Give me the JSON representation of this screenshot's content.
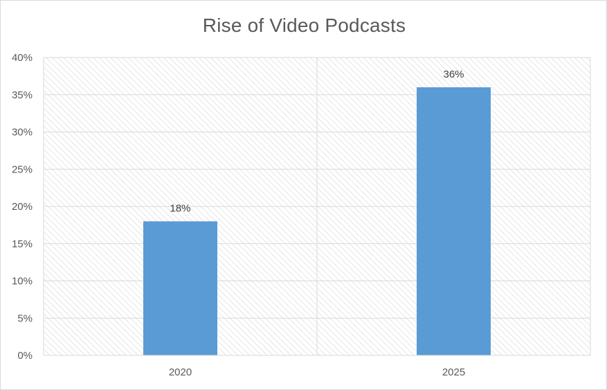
{
  "chart_data": {
    "type": "bar",
    "title": "Rise of Video Podcasts",
    "categories": [
      "2020",
      "2025"
    ],
    "values": [
      0.18,
      0.36
    ],
    "data_labels": [
      "18%",
      "36%"
    ],
    "xlabel": "",
    "ylabel": "",
    "ylim": [
      0,
      0.4
    ],
    "y_ticks": [
      0,
      0.05,
      0.1,
      0.15,
      0.2,
      0.25,
      0.3,
      0.35,
      0.4
    ],
    "y_tick_labels": [
      "0%",
      "5%",
      "10%",
      "15%",
      "20%",
      "25%",
      "30%",
      "35%",
      "40%"
    ],
    "grid": true,
    "legend": "none",
    "bar_color": "#5b9bd5",
    "gridline_color": "#d9d9d9",
    "plot_background": "hatched"
  }
}
